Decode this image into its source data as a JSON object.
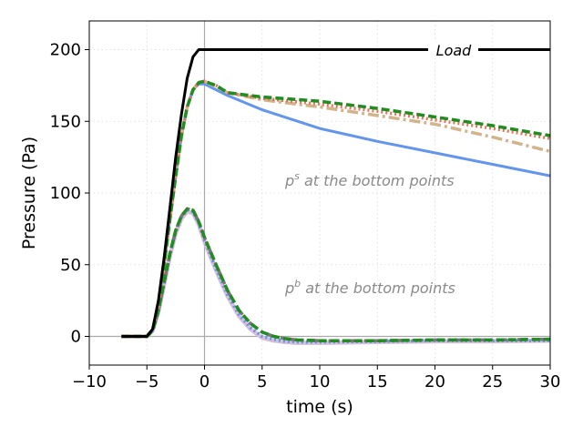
{
  "chart_data": {
    "type": "line",
    "xlabel": "time (s)",
    "ylabel": "Pressure (Pa)",
    "xlim": [
      -10,
      30
    ],
    "ylim": [
      -20,
      220
    ],
    "xticks": [
      -10,
      -5,
      0,
      5,
      10,
      15,
      20,
      25,
      30
    ],
    "yticks": [
      0,
      50,
      100,
      150,
      200
    ],
    "xtick_labels": [
      "−10",
      "−5",
      "0",
      "5",
      "10",
      "15",
      "20",
      "25",
      "30"
    ],
    "ytick_labels": [
      "0",
      "50",
      "100",
      "150",
      "200"
    ],
    "grid": true,
    "reference_lines": {
      "x": 0,
      "y": 0
    },
    "annotations": {
      "load": "Load",
      "ps_base": "p",
      "ps_sup": "s",
      "ps_rest": " at the bottom points",
      "pb_base": "p",
      "pb_sup": "b",
      "pb_rest": " at the bottom points"
    },
    "series": [
      {
        "group": "load",
        "color": "#000000",
        "style": "solid",
        "x": [
          -7.2,
          -5,
          -4.5,
          -4,
          -3.5,
          -3,
          -2.5,
          -2,
          -1.5,
          -1,
          -0.5,
          0,
          30
        ],
        "y": [
          0,
          0,
          5,
          25,
          55,
          90,
          125,
          155,
          180,
          195,
          200,
          200,
          200
        ]
      },
      {
        "group": "ps",
        "color": "#228b22",
        "style": "dashed",
        "x": [
          -7.2,
          -5,
          -4.5,
          -4,
          -3.5,
          -3,
          -2.5,
          -2,
          -1.5,
          -1,
          -0.5,
          0,
          1,
          2,
          5,
          10,
          15,
          20,
          25,
          30
        ],
        "y": [
          0,
          0,
          5,
          22,
          50,
          82,
          112,
          140,
          160,
          172,
          177,
          178,
          175,
          170,
          167,
          164,
          159,
          153,
          147,
          140
        ]
      },
      {
        "group": "ps",
        "color": "#e4745a",
        "style": "dotted",
        "x": [
          -7.2,
          -5,
          -4.5,
          -4,
          -3.5,
          -3,
          -2.5,
          -2,
          -1.5,
          -1,
          -0.5,
          0,
          1,
          2,
          5,
          10,
          15,
          20,
          25,
          30
        ],
        "y": [
          0,
          0,
          5,
          22,
          50,
          82,
          112,
          140,
          160,
          172,
          177,
          178,
          175,
          170,
          166,
          162,
          157,
          151,
          145,
          138
        ]
      },
      {
        "group": "ps",
        "color": "#d2b48c",
        "style": "dashdot",
        "x": [
          -7.2,
          -5,
          -4.5,
          -4,
          -3.5,
          -3,
          -2.5,
          -2,
          -1.5,
          -1,
          -0.5,
          0,
          1,
          2,
          5,
          10,
          15,
          20,
          25,
          30
        ],
        "y": [
          0,
          0,
          5,
          22,
          50,
          82,
          112,
          140,
          160,
          172,
          177,
          178,
          174,
          170,
          165,
          160,
          154,
          148,
          139,
          129
        ]
      },
      {
        "group": "ps",
        "color": "#6495ed",
        "style": "solid",
        "x": [
          -7.2,
          -5,
          -4.5,
          -4,
          -3.5,
          -3,
          -2.5,
          -2,
          -1.5,
          -1,
          -0.5,
          0,
          1,
          2,
          5,
          10,
          15,
          20,
          25,
          30
        ],
        "y": [
          0,
          0,
          5,
          22,
          50,
          82,
          112,
          140,
          160,
          172,
          176,
          176,
          172,
          168,
          158,
          145,
          136,
          128,
          120,
          112
        ]
      },
      {
        "group": "pb",
        "color": "#228b22",
        "style": "dashed",
        "x": [
          -7.2,
          -5,
          -4.5,
          -4,
          -3.5,
          -3,
          -2.5,
          -2,
          -1.5,
          -1,
          -0.5,
          0,
          1,
          2,
          3,
          4,
          5,
          6,
          7,
          8,
          10,
          15,
          20,
          25,
          30
        ],
        "y": [
          0,
          0,
          4,
          18,
          38,
          58,
          74,
          84,
          89,
          88,
          80,
          69,
          50,
          32,
          18,
          9,
          3,
          0,
          -1.5,
          -2.5,
          -3,
          -3,
          -2.5,
          -2.5,
          -2
        ]
      },
      {
        "group": "pb",
        "color": "#777777",
        "style": "dashdot",
        "x": [
          -7.2,
          -5,
          -4.5,
          -4,
          -3.5,
          -3,
          -2.5,
          -2,
          -1.5,
          -1,
          -0.5,
          0,
          1,
          2,
          3,
          4,
          5,
          6,
          7,
          8,
          10,
          15,
          20,
          25,
          30
        ],
        "y": [
          0,
          0,
          4,
          18,
          38,
          58,
          74,
          84,
          89,
          88,
          80,
          69,
          50,
          32,
          18,
          9,
          3,
          0,
          -1.5,
          -2.5,
          -3,
          -3,
          -2.5,
          -2.5,
          -2
        ]
      },
      {
        "group": "pb",
        "color": "#6495ed",
        "style": "dotted",
        "x": [
          -7.2,
          -5,
          -4.5,
          -4,
          -3.5,
          -3,
          -2.5,
          -2,
          -1.5,
          -1,
          -0.5,
          0,
          1,
          2,
          3,
          4,
          5,
          6,
          7,
          8,
          10,
          15,
          20,
          25,
          30
        ],
        "y": [
          0,
          0,
          4,
          17,
          37,
          57,
          73,
          83,
          88,
          87,
          79,
          67,
          47,
          29,
          15,
          6,
          0,
          -2,
          -3.5,
          -4,
          -4,
          -3.5,
          -3,
          -3,
          -3
        ]
      },
      {
        "group": "pb",
        "color": "#d8bfd8",
        "style": "thick",
        "x": [
          -7.2,
          -5,
          -4.5,
          -4,
          -3.5,
          -3,
          -2.5,
          -2,
          -1.5,
          -1,
          -0.5,
          0,
          1,
          2,
          3,
          4,
          5,
          6,
          7,
          8,
          10,
          15,
          20,
          25,
          30
        ],
        "y": [
          0,
          0,
          4,
          17,
          36,
          56,
          72,
          82,
          87,
          86,
          78,
          66,
          46,
          28,
          14,
          5,
          -1,
          -3,
          -4,
          -4.5,
          -4.5,
          -4,
          -3.5,
          -3.5,
          -3
        ]
      }
    ]
  }
}
